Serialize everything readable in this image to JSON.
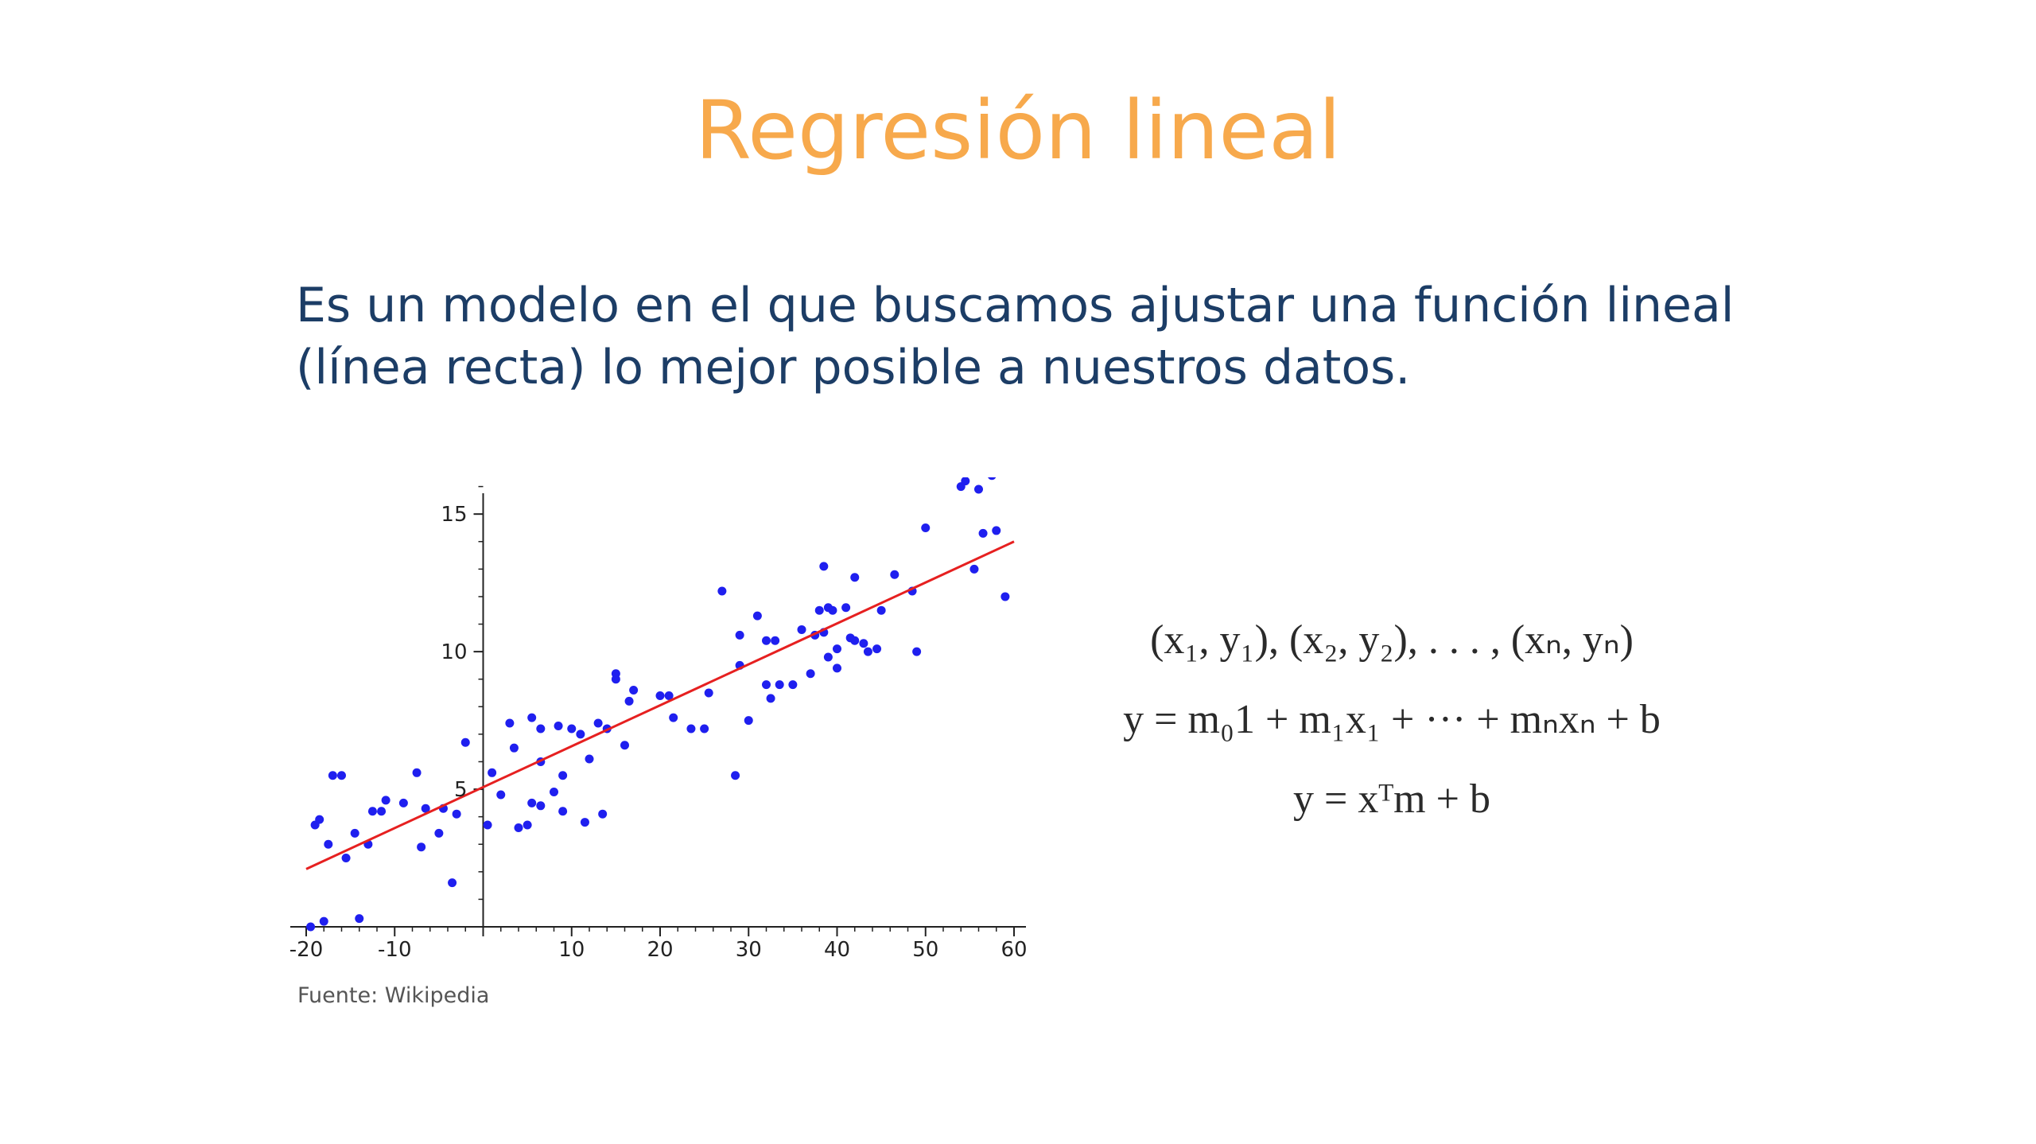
{
  "title": "Regresión lineal",
  "description": {
    "line1": "Es un modelo en el que buscamos ajustar una función lineal",
    "line2": "(línea recta) lo mejor posible a nuestros datos."
  },
  "caption": "Fuente: Wikipedia",
  "colors": {
    "title": "#f7a94c",
    "text": "#1c3d66",
    "points": "#1f1fef",
    "fit_line": "#e62020"
  },
  "chart_data": {
    "type": "scatter",
    "title": "",
    "xlabel": "",
    "ylabel": "",
    "xlim": [
      -20,
      60
    ],
    "ylim": [
      0,
      17
    ],
    "x_ticks": [
      -20,
      -10,
      10,
      20,
      30,
      40,
      50,
      60
    ],
    "y_ticks": [
      5,
      10,
      15
    ],
    "x_tick_labels": [
      "-20",
      "-10",
      "10",
      "20",
      "30",
      "40",
      "50",
      "60"
    ],
    "y_tick_labels": [
      "5",
      "10",
      "15"
    ],
    "grid": false,
    "fit_line": {
      "x": [
        -20,
        60
      ],
      "y": [
        2.1,
        14.0
      ]
    },
    "points": [
      [
        -19.0,
        3.7
      ],
      [
        -18.5,
        3.9
      ],
      [
        -17.5,
        3.0
      ],
      [
        -17.0,
        5.5
      ],
      [
        -16.0,
        5.5
      ],
      [
        -15.5,
        2.5
      ],
      [
        -14.5,
        3.4
      ],
      [
        -13.0,
        3.0
      ],
      [
        -12.5,
        4.2
      ],
      [
        -11.5,
        4.2
      ],
      [
        -11.0,
        4.6
      ],
      [
        -9.0,
        4.5
      ],
      [
        -7.5,
        5.6
      ],
      [
        -7.0,
        2.9
      ],
      [
        -6.5,
        4.3
      ],
      [
        -5.0,
        3.4
      ],
      [
        -4.5,
        4.3
      ],
      [
        -3.5,
        1.6
      ],
      [
        -3.0,
        4.1
      ],
      [
        -2.0,
        6.7
      ],
      [
        -18.0,
        0.2
      ],
      [
        -14.0,
        0.3
      ],
      [
        -19.5,
        0.0
      ],
      [
        0.5,
        3.7
      ],
      [
        1.0,
        5.6
      ],
      [
        2.0,
        4.8
      ],
      [
        3.0,
        7.4
      ],
      [
        3.5,
        6.5
      ],
      [
        4.0,
        3.6
      ],
      [
        5.0,
        3.7
      ],
      [
        5.5,
        4.5
      ],
      [
        5.5,
        7.6
      ],
      [
        6.5,
        7.2
      ],
      [
        6.5,
        4.4
      ],
      [
        6.5,
        6.0
      ],
      [
        8.0,
        4.9
      ],
      [
        8.5,
        7.3
      ],
      [
        9.0,
        5.5
      ],
      [
        9.0,
        4.2
      ],
      [
        10.0,
        7.2
      ],
      [
        11.0,
        7.0
      ],
      [
        11.5,
        3.8
      ],
      [
        12.0,
        6.1
      ],
      [
        13.0,
        7.4
      ],
      [
        13.5,
        4.1
      ],
      [
        14.0,
        7.2
      ],
      [
        15.0,
        9.2
      ],
      [
        15.0,
        9.0
      ],
      [
        16.0,
        6.6
      ],
      [
        16.5,
        8.2
      ],
      [
        17.0,
        8.6
      ],
      [
        20.0,
        8.4
      ],
      [
        21.0,
        8.4
      ],
      [
        21.5,
        7.6
      ],
      [
        23.5,
        7.2
      ],
      [
        25.0,
        7.2
      ],
      [
        25.5,
        8.5
      ],
      [
        27.0,
        12.2
      ],
      [
        28.5,
        5.5
      ],
      [
        29.0,
        9.5
      ],
      [
        29.0,
        10.6
      ],
      [
        30.0,
        7.5
      ],
      [
        31.0,
        11.3
      ],
      [
        32.0,
        10.4
      ],
      [
        32.0,
        8.8
      ],
      [
        32.5,
        8.3
      ],
      [
        33.0,
        10.4
      ],
      [
        33.5,
        8.8
      ],
      [
        35.0,
        8.8
      ],
      [
        36.0,
        10.8
      ],
      [
        37.0,
        9.2
      ],
      [
        37.5,
        10.6
      ],
      [
        38.0,
        11.5
      ],
      [
        38.5,
        13.1
      ],
      [
        38.5,
        10.7
      ],
      [
        39.0,
        11.6
      ],
      [
        39.0,
        9.8
      ],
      [
        39.5,
        11.5
      ],
      [
        40.0,
        10.1
      ],
      [
        40.0,
        9.4
      ],
      [
        41.0,
        11.6
      ],
      [
        41.5,
        10.5
      ],
      [
        42.0,
        12.7
      ],
      [
        42.0,
        10.4
      ],
      [
        43.0,
        10.3
      ],
      [
        43.5,
        10.0
      ],
      [
        44.5,
        10.1
      ],
      [
        45.0,
        11.5
      ],
      [
        46.5,
        12.8
      ],
      [
        48.5,
        12.2
      ],
      [
        49.0,
        10.0
      ],
      [
        50.0,
        14.5
      ],
      [
        54.0,
        16.0
      ],
      [
        54.5,
        16.2
      ],
      [
        55.5,
        13.0
      ],
      [
        56.0,
        15.9
      ],
      [
        56.5,
        14.3
      ],
      [
        57.5,
        16.4
      ],
      [
        58.0,
        14.4
      ],
      [
        59.0,
        12.0
      ]
    ]
  },
  "equations": {
    "eq1": "(x₁, y₁), (x₂, y₂), . . . , (xₙ, yₙ)",
    "eq2": "y = m₀1 + m₁x₁ + ··· + mₙxₙ + b",
    "eq3": "y = xᵀm + b"
  }
}
